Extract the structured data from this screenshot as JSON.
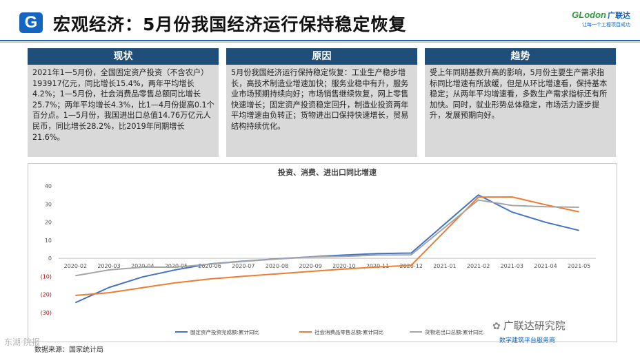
{
  "header": {
    "logo_letter": "G",
    "title": "宏观经济：5月份我国经济运行保持稳定恢复",
    "brand_name": "GLodon",
    "brand_cn": "广联达",
    "brand_slogan": "让每一个工程项目成功"
  },
  "panels": [
    {
      "title": "现状",
      "body": "2021年1—5月份，全国固定资产投资（不含农户）193917亿元，同比增长15.4%，两年平均增长4.2%；1—5月份，社会消费品零售总额同比增长25.7%；两年平均增长4.3%，比1—4月份提高0.1个百分点。1—5月份，我国进出口总值14.76万亿元人民币，同比增长28.2%，比2019年同期增长21.6%。"
    },
    {
      "title": "原因",
      "body": "5月份我国经济运行保持稳定恢复：工业生产稳步增长，高技术制造业增速加快；服务业稳中有升，服务业市场预期持续向好；市场销售继续恢复，网上零售快速增长；固定资产投资稳定回升，制造业投资两年平均增速由负转正；货物进出口保持快速增长，贸易结构持续优化。"
    },
    {
      "title": "趋势",
      "body": "受上年同期基数升高的影响，5月份主要生产需求指标同比增速有所放缓，但是从环比增速看，保持基本稳定；从两年平均增速看，多数生产需求指标还有所加快。同时，就业形势总体稳定，市场活力逐步提升，发展预期向好。"
    }
  ],
  "chart_data": {
    "type": "line",
    "title": "投资、消费、进出口同比增速",
    "categories": [
      "2020-02",
      "2020-03",
      "2020-04",
      "2020-05",
      "2020-06",
      "2020-07",
      "2020-08",
      "2020-09",
      "2020-10",
      "2020-11",
      "2020-12",
      "2021-01",
      "2021-02",
      "2021-03",
      "2021-04",
      "2021-05"
    ],
    "ylim": [
      -30,
      40
    ],
    "yticks": [
      40,
      30,
      20,
      10,
      0,
      -10,
      -20,
      -30
    ],
    "ytick_labels": [
      "40",
      "30",
      "20",
      "10",
      "0",
      "(10)",
      "(20)",
      "(30)"
    ],
    "series": [
      {
        "name": "固定资产投资完成额:累计同比",
        "color": "#4472c4",
        "values": [
          -24.5,
          -16.1,
          -10.3,
          -6.3,
          -3.1,
          -1.6,
          -0.3,
          0.8,
          1.8,
          2.6,
          2.9,
          null,
          35.0,
          25.6,
          19.9,
          15.4
        ]
      },
      {
        "name": "社会消费品零售总额:累计同比",
        "color": "#ed7d31",
        "values": [
          -20.5,
          -19.0,
          -16.2,
          -13.5,
          -11.4,
          -9.9,
          -8.6,
          -7.2,
          -5.9,
          -4.8,
          -3.9,
          null,
          33.8,
          33.9,
          29.6,
          25.7
        ]
      },
      {
        "name": "货物进出口总额:累计同比",
        "color": "#a5a5a5",
        "values": [
          -9.6,
          -6.4,
          -4.9,
          -4.9,
          -3.2,
          -1.7,
          -0.4,
          0.7,
          1.1,
          1.8,
          1.9,
          null,
          32.2,
          29.2,
          28.5,
          28.2
        ]
      }
    ]
  },
  "footer": {
    "source": "数据来源：国家统计局",
    "watermark_right": "广联达研究院",
    "service": "数字建筑平台服务商",
    "watermark_left": "东湖·院报"
  }
}
